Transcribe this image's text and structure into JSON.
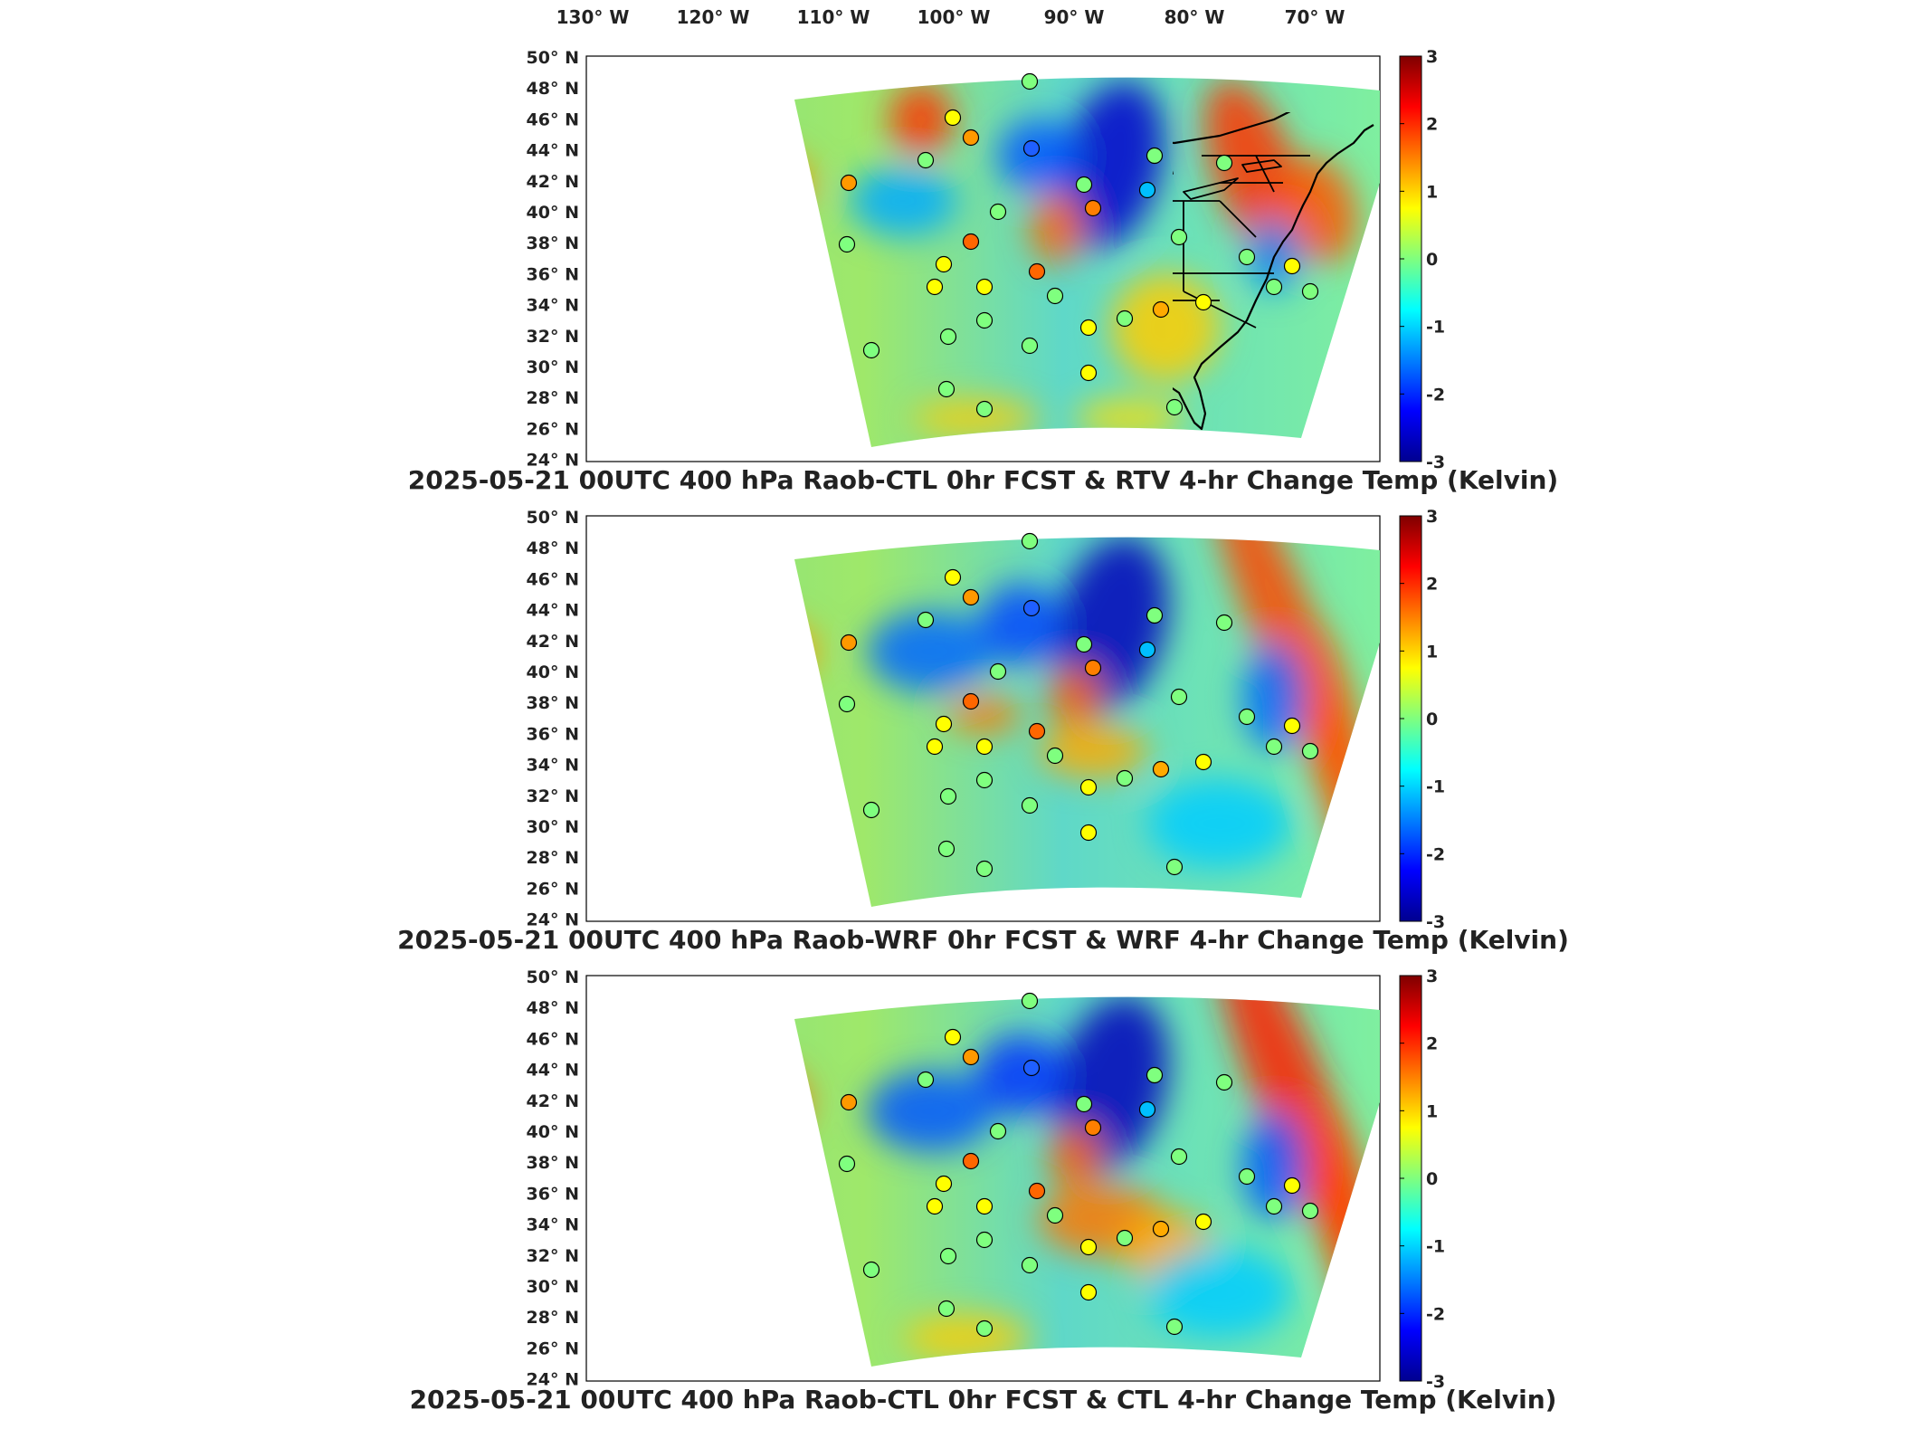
{
  "figure": {
    "top_axis_labels": [
      "130° W",
      "120° W",
      "110° W",
      "100° W",
      "90° W",
      "80° W",
      "70° W"
    ],
    "lat_labels": [
      "50° N",
      "48° N",
      "46° N",
      "44° N",
      "42° N",
      "40° N",
      "38° N",
      "36° N",
      "34° N",
      "32° N",
      "30° N",
      "28° N",
      "26° N",
      "24° N"
    ],
    "panels": [
      {
        "title": "2025-05-21 00UTC 400 hPa Raob-CTL 0hr FCST & RTV 4-hr Change Temp (Kelvin)",
        "colorbar_ticks": [
          "3",
          "2",
          "1",
          "0",
          "-1",
          "-2",
          "-3"
        ]
      },
      {
        "title": "2025-05-21 00UTC 400 hPa Raob-WRF 0hr FCST & WRF 4-hr Change Temp (Kelvin)",
        "colorbar_ticks": [
          "3",
          "2",
          "1",
          "0",
          "-1",
          "-2",
          "-3"
        ]
      },
      {
        "title": "2025-05-21 00UTC 400 hPa Raob-CTL 0hr FCST & CTL 4-hr Change Temp (Kelvin)",
        "colorbar_ticks": [
          "3",
          "2",
          "1",
          "0",
          "-1",
          "-2",
          "-3"
        ]
      }
    ],
    "colormap": [
      "#00008f",
      "#0000ff",
      "#007fff",
      "#00ffff",
      "#7fff7f",
      "#ffff00",
      "#ff7f00",
      "#ff0000",
      "#7f0000"
    ],
    "colorbar_range": [
      -3,
      3
    ]
  }
}
